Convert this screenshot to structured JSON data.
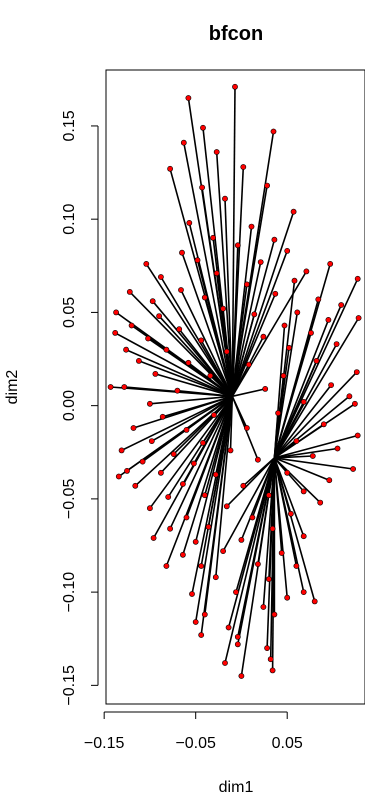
{
  "chart_data": {
    "type": "scatter",
    "title": "bfcon",
    "xlabel": "dim1",
    "ylabel": "dim2",
    "xlim": [
      -0.148,
      0.135
    ],
    "ylim": [
      -0.16,
      0.18
    ],
    "x_ticks": [
      {
        "value": -0.15,
        "label": "−0.15"
      },
      {
        "value": -0.05,
        "label": "−0.05"
      },
      {
        "value": 0.05,
        "label": "0.05"
      }
    ],
    "y_ticks": [
      {
        "value": -0.15,
        "label": "−0.15"
      },
      {
        "value": -0.1,
        "label": "−0.10"
      },
      {
        "value": -0.05,
        "label": "−0.05"
      },
      {
        "value": 0.0,
        "label": "0.00"
      },
      {
        "value": 0.05,
        "label": "0.05"
      },
      {
        "value": 0.1,
        "label": "0.10"
      },
      {
        "value": 0.15,
        "label": "0.15"
      }
    ],
    "grid": false,
    "legend": "none",
    "point_color": "#ff0000",
    "segment_color": "#000000",
    "hubs": [
      {
        "x": -0.01,
        "y": 0.005
      },
      {
        "x": 0.036,
        "y": -0.028
      }
    ],
    "points": [
      {
        "x": -0.058,
        "y": 0.165,
        "hub": 0
      },
      {
        "x": -0.007,
        "y": 0.171,
        "hub": 0
      },
      {
        "x": -0.042,
        "y": 0.149,
        "hub": 0
      },
      {
        "x": 0.035,
        "y": 0.147,
        "hub": 0
      },
      {
        "x": -0.063,
        "y": 0.141,
        "hub": 0
      },
      {
        "x": -0.027,
        "y": 0.136,
        "hub": 0
      },
      {
        "x": -0.078,
        "y": 0.127,
        "hub": 0
      },
      {
        "x": 0.002,
        "y": 0.128,
        "hub": 0
      },
      {
        "x": -0.043,
        "y": 0.117,
        "hub": 0
      },
      {
        "x": 0.028,
        "y": 0.118,
        "hub": 0
      },
      {
        "x": -0.018,
        "y": 0.111,
        "hub": 0
      },
      {
        "x": 0.057,
        "y": 0.104,
        "hub": 0
      },
      {
        "x": -0.057,
        "y": 0.098,
        "hub": 0
      },
      {
        "x": 0.011,
        "y": 0.096,
        "hub": 0
      },
      {
        "x": -0.031,
        "y": 0.09,
        "hub": 0
      },
      {
        "x": 0.036,
        "y": 0.089,
        "hub": 0
      },
      {
        "x": -0.065,
        "y": 0.082,
        "hub": 0
      },
      {
        "x": -0.004,
        "y": 0.086,
        "hub": 0
      },
      {
        "x": 0.05,
        "y": 0.083,
        "hub": 0
      },
      {
        "x": -0.104,
        "y": 0.076,
        "hub": 0
      },
      {
        "x": -0.048,
        "y": 0.078,
        "hub": 0
      },
      {
        "x": 0.021,
        "y": 0.077,
        "hub": 0
      },
      {
        "x": 0.071,
        "y": 0.072,
        "hub": 0
      },
      {
        "x": -0.088,
        "y": 0.069,
        "hub": 0
      },
      {
        "x": -0.027,
        "y": 0.071,
        "hub": 0
      },
      {
        "x": 0.058,
        "y": 0.067,
        "hub": 1
      },
      {
        "x": 0.097,
        "y": 0.076,
        "hub": 1
      },
      {
        "x": -0.122,
        "y": 0.061,
        "hub": 0
      },
      {
        "x": -0.066,
        "y": 0.062,
        "hub": 0
      },
      {
        "x": 0.006,
        "y": 0.065,
        "hub": 0
      },
      {
        "x": 0.127,
        "y": 0.068,
        "hub": 1
      },
      {
        "x": -0.097,
        "y": 0.056,
        "hub": 0
      },
      {
        "x": -0.04,
        "y": 0.058,
        "hub": 0
      },
      {
        "x": 0.037,
        "y": 0.06,
        "hub": 0
      },
      {
        "x": 0.084,
        "y": 0.057,
        "hub": 1
      },
      {
        "x": -0.137,
        "y": 0.05,
        "hub": 0
      },
      {
        "x": -0.09,
        "y": 0.048,
        "hub": 0
      },
      {
        "x": -0.02,
        "y": 0.052,
        "hub": 0
      },
      {
        "x": 0.014,
        "y": 0.049,
        "hub": 0
      },
      {
        "x": 0.061,
        "y": 0.05,
        "hub": 1
      },
      {
        "x": 0.109,
        "y": 0.054,
        "hub": 1
      },
      {
        "x": -0.12,
        "y": 0.043,
        "hub": 0
      },
      {
        "x": -0.068,
        "y": 0.041,
        "hub": 0
      },
      {
        "x": 0.047,
        "y": 0.043,
        "hub": 1
      },
      {
        "x": 0.095,
        "y": 0.046,
        "hub": 1
      },
      {
        "x": -0.138,
        "y": 0.039,
        "hub": 0
      },
      {
        "x": -0.102,
        "y": 0.036,
        "hub": 0
      },
      {
        "x": -0.044,
        "y": 0.035,
        "hub": 0
      },
      {
        "x": 0.024,
        "y": 0.037,
        "hub": 0
      },
      {
        "x": 0.076,
        "y": 0.039,
        "hub": 1
      },
      {
        "x": 0.128,
        "y": 0.047,
        "hub": 1
      },
      {
        "x": -0.126,
        "y": 0.03,
        "hub": 0
      },
      {
        "x": -0.082,
        "y": 0.03,
        "hub": 0
      },
      {
        "x": -0.016,
        "y": 0.029,
        "hub": 0
      },
      {
        "x": 0.052,
        "y": 0.031,
        "hub": 1
      },
      {
        "x": 0.104,
        "y": 0.033,
        "hub": 1
      },
      {
        "x": -0.112,
        "y": 0.024,
        "hub": 0
      },
      {
        "x": -0.058,
        "y": 0.023,
        "hub": 0
      },
      {
        "x": 0.008,
        "y": 0.022,
        "hub": 0
      },
      {
        "x": 0.082,
        "y": 0.024,
        "hub": 1
      },
      {
        "x": -0.094,
        "y": 0.017,
        "hub": 0
      },
      {
        "x": -0.034,
        "y": 0.016,
        "hub": 0
      },
      {
        "x": 0.046,
        "y": 0.016,
        "hub": 1
      },
      {
        "x": 0.126,
        "y": 0.018,
        "hub": 1
      },
      {
        "x": -0.128,
        "y": 0.01,
        "hub": 0
      },
      {
        "x": -0.07,
        "y": 0.008,
        "hub": 0
      },
      {
        "x": 0.026,
        "y": 0.009,
        "hub": 0
      },
      {
        "x": 0.098,
        "y": 0.011,
        "hub": 1
      },
      {
        "x": -0.143,
        "y": 0.01,
        "hub": 0
      },
      {
        "x": -0.1,
        "y": 0.001,
        "hub": 0
      },
      {
        "x": 0.068,
        "y": 0.002,
        "hub": 1
      },
      {
        "x": 0.118,
        "y": 0.005,
        "hub": 1
      },
      {
        "x": -0.086,
        "y": -0.006,
        "hub": 0
      },
      {
        "x": -0.03,
        "y": -0.005,
        "hub": 0
      },
      {
        "x": 0.04,
        "y": -0.004,
        "hub": 1
      },
      {
        "x": 0.124,
        "y": 0.001,
        "hub": 1
      },
      {
        "x": -0.118,
        "y": -0.012,
        "hub": 0
      },
      {
        "x": -0.06,
        "y": -0.013,
        "hub": 0
      },
      {
        "x": 0.006,
        "y": -0.012,
        "hub": 0
      },
      {
        "x": 0.09,
        "y": -0.01,
        "hub": 1
      },
      {
        "x": -0.098,
        "y": -0.019,
        "hub": 0
      },
      {
        "x": -0.042,
        "y": -0.02,
        "hub": 0
      },
      {
        "x": 0.06,
        "y": -0.019,
        "hub": 1
      },
      {
        "x": 0.127,
        "y": -0.016,
        "hub": 1
      },
      {
        "x": -0.131,
        "y": -0.024,
        "hub": 0
      },
      {
        "x": -0.074,
        "y": -0.026,
        "hub": 0
      },
      {
        "x": -0.012,
        "y": -0.024,
        "hub": 0
      },
      {
        "x": 0.105,
        "y": -0.023,
        "hub": 1
      },
      {
        "x": -0.108,
        "y": -0.03,
        "hub": 0
      },
      {
        "x": -0.052,
        "y": -0.031,
        "hub": 0
      },
      {
        "x": 0.018,
        "y": -0.029,
        "hub": 0
      },
      {
        "x": 0.078,
        "y": -0.027,
        "hub": 1
      },
      {
        "x": -0.134,
        "y": -0.038,
        "hub": 0
      },
      {
        "x": -0.088,
        "y": -0.036,
        "hub": 0
      },
      {
        "x": -0.028,
        "y": -0.037,
        "hub": 0
      },
      {
        "x": 0.05,
        "y": -0.036,
        "hub": 1
      },
      {
        "x": 0.122,
        "y": -0.034,
        "hub": 1
      },
      {
        "x": -0.116,
        "y": -0.043,
        "hub": 0
      },
      {
        "x": -0.064,
        "y": -0.042,
        "hub": 0
      },
      {
        "x": 0.002,
        "y": -0.043,
        "hub": 1
      },
      {
        "x": 0.096,
        "y": -0.04,
        "hub": 1
      },
      {
        "x": -0.125,
        "y": -0.035,
        "hub": 0
      },
      {
        "x": -0.08,
        "y": -0.049,
        "hub": 0
      },
      {
        "x": -0.04,
        "y": -0.048,
        "hub": 0
      },
      {
        "x": 0.03,
        "y": -0.048,
        "hub": 1
      },
      {
        "x": 0.068,
        "y": -0.046,
        "hub": 1
      },
      {
        "x": -0.1,
        "y": -0.055,
        "hub": 0
      },
      {
        "x": -0.016,
        "y": -0.054,
        "hub": 1
      },
      {
        "x": 0.086,
        "y": -0.052,
        "hub": 1
      },
      {
        "x": -0.06,
        "y": -0.06,
        "hub": 0
      },
      {
        "x": 0.012,
        "y": -0.06,
        "hub": 1
      },
      {
        "x": 0.054,
        "y": -0.058,
        "hub": 1
      },
      {
        "x": -0.078,
        "y": -0.066,
        "hub": 0
      },
      {
        "x": -0.036,
        "y": -0.065,
        "hub": 0
      },
      {
        "x": 0.034,
        "y": -0.066,
        "hub": 1
      },
      {
        "x": -0.096,
        "y": -0.071,
        "hub": 0
      },
      {
        "x": -0.05,
        "y": -0.073,
        "hub": 0
      },
      {
        "x": 0.0,
        "y": -0.072,
        "hub": 1
      },
      {
        "x": 0.068,
        "y": -0.07,
        "hub": 1
      },
      {
        "x": -0.064,
        "y": -0.08,
        "hub": 0
      },
      {
        "x": -0.02,
        "y": -0.078,
        "hub": 1
      },
      {
        "x": 0.044,
        "y": -0.079,
        "hub": 1
      },
      {
        "x": -0.044,
        "y": -0.086,
        "hub": 0
      },
      {
        "x": 0.018,
        "y": -0.085,
        "hub": 1
      },
      {
        "x": 0.06,
        "y": -0.086,
        "hub": 1
      },
      {
        "x": -0.082,
        "y": -0.086,
        "hub": 0
      },
      {
        "x": -0.028,
        "y": -0.092,
        "hub": 0
      },
      {
        "x": 0.03,
        "y": -0.093,
        "hub": 1
      },
      {
        "x": -0.054,
        "y": -0.101,
        "hub": 0
      },
      {
        "x": -0.006,
        "y": -0.1,
        "hub": 1
      },
      {
        "x": 0.068,
        "y": -0.1,
        "hub": 1
      },
      {
        "x": -0.04,
        "y": -0.112,
        "hub": 0
      },
      {
        "x": 0.024,
        "y": -0.108,
        "hub": 1
      },
      {
        "x": 0.05,
        "y": -0.103,
        "hub": 1
      },
      {
        "x": -0.05,
        "y": -0.116,
        "hub": 0
      },
      {
        "x": -0.014,
        "y": -0.119,
        "hub": 1
      },
      {
        "x": 0.036,
        "y": -0.112,
        "hub": 1
      },
      {
        "x": 0.08,
        "y": -0.105,
        "hub": 1
      },
      {
        "x": -0.044,
        "y": -0.123,
        "hub": 0
      },
      {
        "x": -0.004,
        "y": -0.124,
        "hub": 1
      },
      {
        "x": 0.028,
        "y": -0.13,
        "hub": 1
      },
      {
        "x": -0.018,
        "y": -0.138,
        "hub": 1
      },
      {
        "x": 0.032,
        "y": -0.136,
        "hub": 1
      },
      {
        "x": 0.0,
        "y": -0.145,
        "hub": 1
      },
      {
        "x": 0.034,
        "y": -0.142,
        "hub": 1
      },
      {
        "x": -0.004,
        "y": -0.128,
        "hub": 1
      }
    ]
  }
}
